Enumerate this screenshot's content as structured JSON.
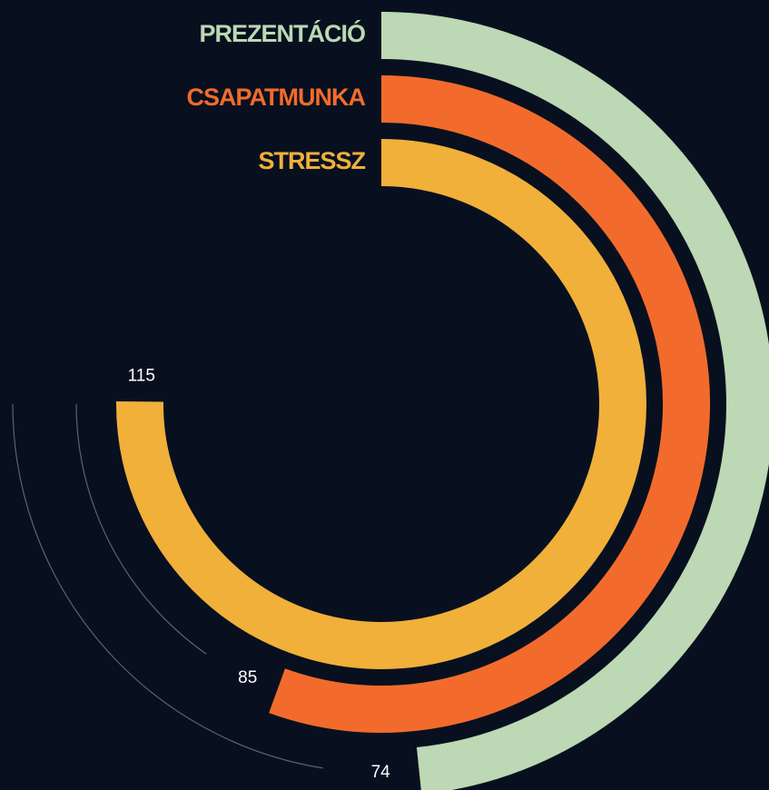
{
  "chart_data": {
    "type": "radial_bar",
    "categories": [
      "PREZENTÁCIÓ",
      "CSAPATMUNKA",
      "STRESSZ"
    ],
    "values": [
      74,
      85,
      115
    ],
    "colors": [
      "#bcd8b4",
      "#f26b2c",
      "#f0b03a"
    ],
    "xlim": [
      0,
      153
    ]
  }
}
